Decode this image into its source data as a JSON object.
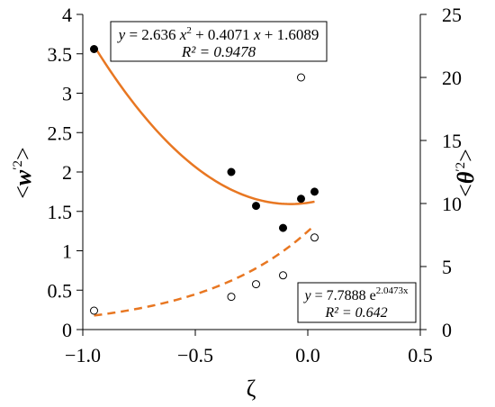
{
  "chart_data": {
    "type": "scatter",
    "xlabel": "ζ",
    "ylabel_left": "<w'2>",
    "ylabel_right": "<θ'2>",
    "xlim": [
      -1.0,
      0.5
    ],
    "ylim_left": [
      0,
      4
    ],
    "ylim_right": [
      0,
      25
    ],
    "x_ticks": [
      "−1.0",
      "−0.5",
      "0.0",
      "0.5"
    ],
    "y_left_ticks": [
      "0",
      "0.5",
      "1",
      "1.5",
      "2",
      "2.5",
      "3",
      "3.5",
      "4"
    ],
    "y_right_ticks": [
      "0",
      "5",
      "10",
      "15",
      "20",
      "25"
    ],
    "grid": false,
    "series": [
      {
        "marker": "filled-circle",
        "axis": "left",
        "x": [
          -0.95,
          -0.34,
          -0.23,
          -0.11,
          -0.03,
          0.03
        ],
        "y": [
          3.56,
          2.0,
          1.57,
          1.29,
          1.66,
          1.75
        ]
      },
      {
        "marker": "open-circle",
        "axis": "right",
        "x": [
          -0.95,
          -0.34,
          -0.23,
          -0.11,
          -0.03,
          0.03
        ],
        "y": [
          1.5,
          2.6,
          3.6,
          4.3,
          20.0,
          7.3
        ]
      }
    ],
    "fits": [
      {
        "style": "solid",
        "axis": "left",
        "color": "#E87722",
        "coeffs": [
          2.636,
          0.4071,
          1.6089
        ],
        "x_range": [
          -0.95,
          0.03
        ],
        "equation_parts": [
          "y",
          " = 2.636 ",
          "x",
          "2",
          " + 0.4071 ",
          "x",
          " + 1.6089"
        ],
        "r2": "R² = 0.9478"
      },
      {
        "style": "dashed",
        "axis": "right",
        "color": "#E87722",
        "a": 7.7888,
        "b": 2.0473,
        "x_range": [
          -0.95,
          0.03
        ],
        "equation_parts": [
          "y",
          " = 7.7888 e",
          "2.0473x"
        ],
        "r2": "R² = 0.642"
      }
    ]
  }
}
